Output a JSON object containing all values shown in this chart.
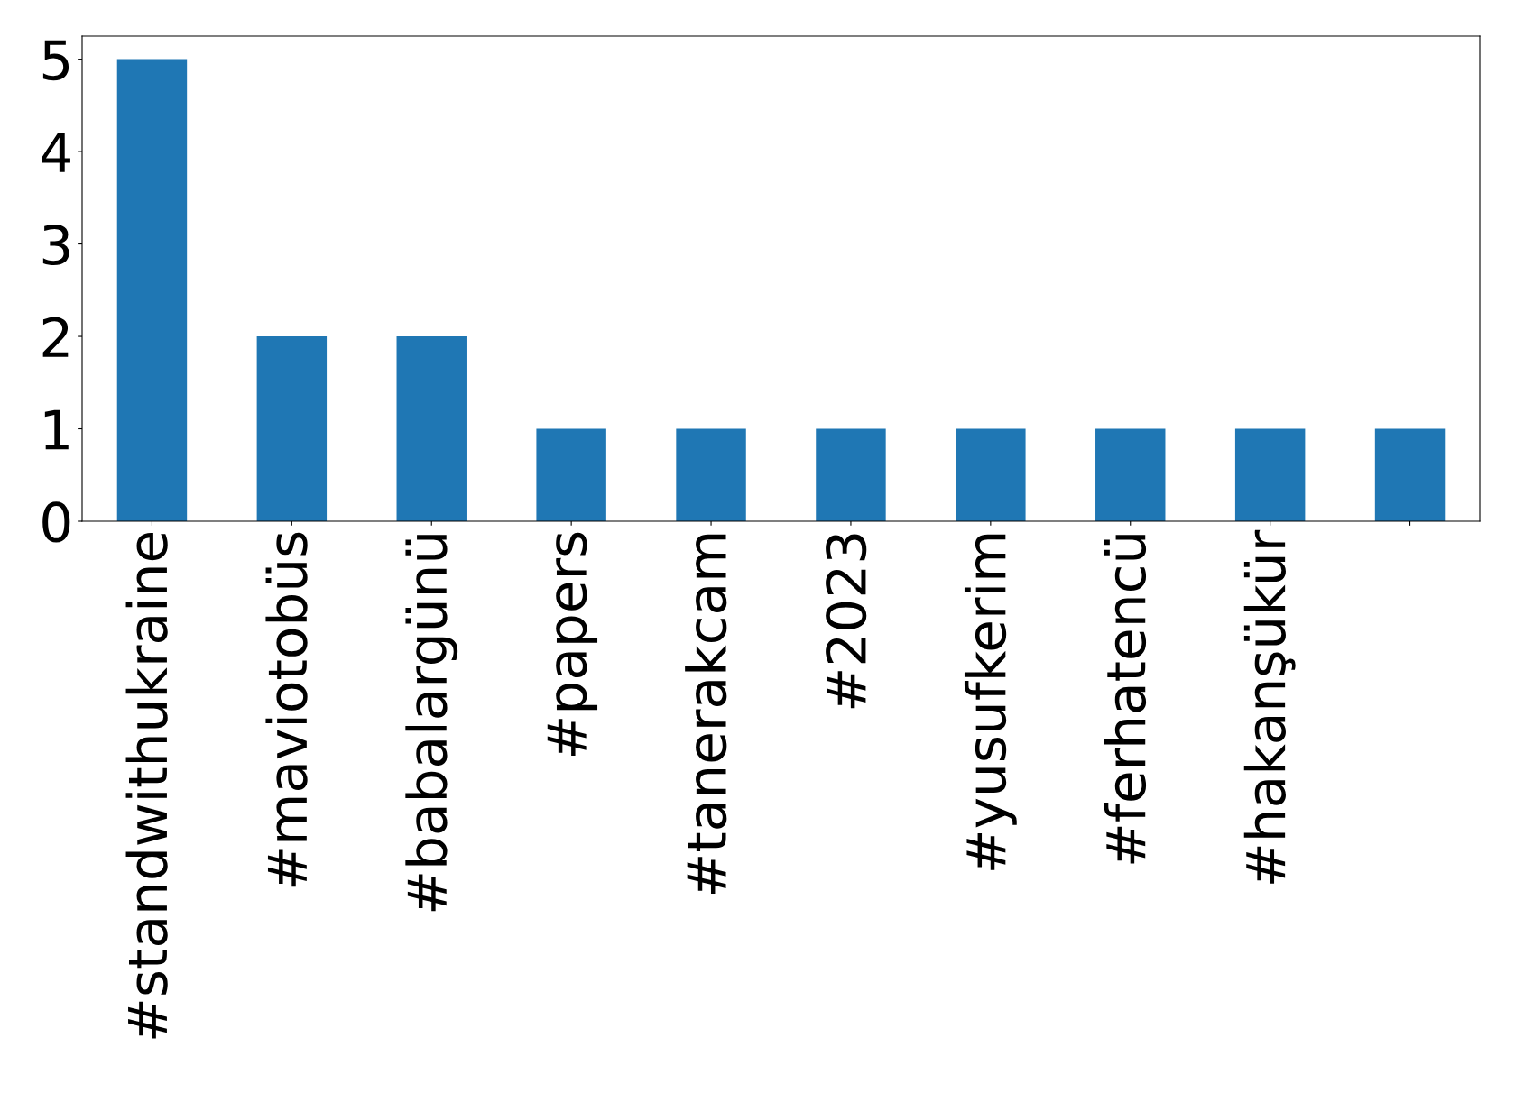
{
  "chart_data": {
    "type": "bar",
    "categories": [
      "#standwithukraine",
      "#maviotobüs",
      "#babalargünü",
      "#papers",
      "#tanerakcam",
      "#2023",
      "#yusufkerim",
      "#ferhatencü",
      "#hakanşükür",
      null
    ],
    "values": [
      5,
      2,
      2,
      1,
      1,
      1,
      1,
      1,
      1,
      1
    ],
    "color": "#1f77b4",
    "ylim": [
      0,
      5.25
    ],
    "yticks": [
      0,
      1,
      2,
      3,
      4,
      5
    ],
    "grid": false,
    "legend": false
  }
}
